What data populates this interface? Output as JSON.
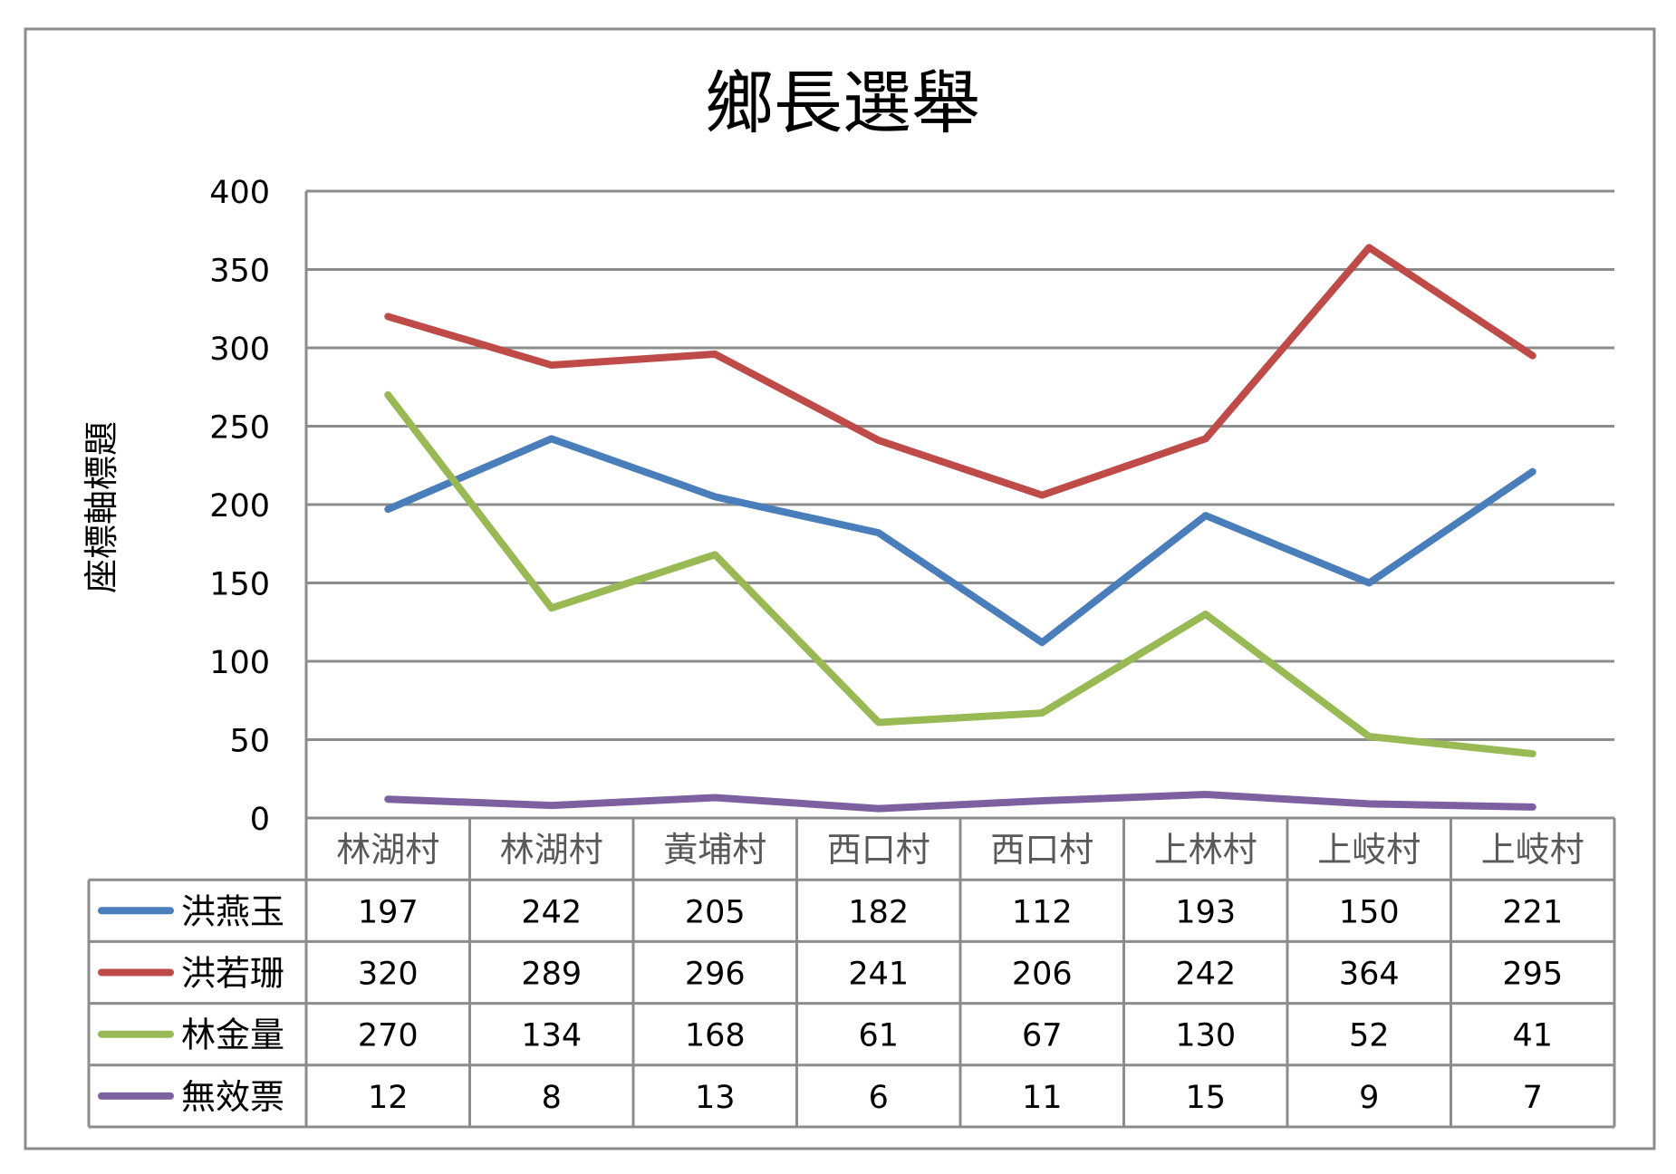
{
  "chart_data": {
    "type": "line",
    "title": "鄉長選舉",
    "xlabel": "",
    "ylabel": "座標軸標題",
    "ylim": [
      0,
      400
    ],
    "yticks": [
      0,
      50,
      100,
      150,
      200,
      250,
      300,
      350,
      400
    ],
    "ytick_labels": [
      "0",
      "50",
      "100",
      "150",
      "200",
      "250",
      "300",
      "350",
      "400"
    ],
    "categories": [
      "林湖村",
      "林湖村",
      "黃埔村",
      "西口村",
      "西口村",
      "上林村",
      "上岐村",
      "上岐村"
    ],
    "grid": true,
    "legend": "data-table",
    "series": [
      {
        "name": "洪燕玉",
        "color": "#4a7ebb",
        "values": [
          197,
          242,
          205,
          182,
          112,
          193,
          150,
          221
        ]
      },
      {
        "name": "洪若珊",
        "color": "#be4b48",
        "values": [
          320,
          289,
          296,
          241,
          206,
          242,
          364,
          295
        ]
      },
      {
        "name": "林金量",
        "color": "#98b954",
        "values": [
          270,
          134,
          168,
          61,
          67,
          130,
          52,
          41
        ]
      },
      {
        "name": "無效票",
        "color": "#7d60a0",
        "values": [
          12,
          8,
          13,
          6,
          11,
          15,
          9,
          7
        ]
      }
    ]
  }
}
